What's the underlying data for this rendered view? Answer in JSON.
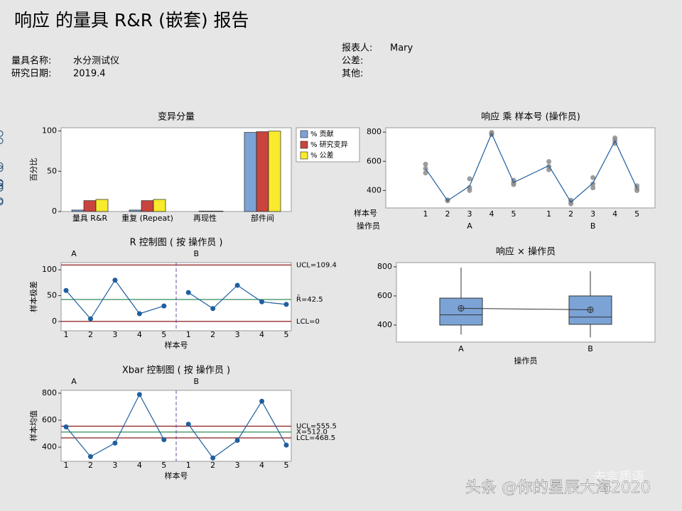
{
  "header": {
    "title": "响应 的量具 R&R (嵌套) 报告",
    "fields": [
      {
        "label": "量具名称:",
        "value": "水分测试仪"
      },
      {
        "label": "研究日期:",
        "value": "2019.4"
      }
    ],
    "fields_right": [
      {
        "label": "报表人:",
        "value": "Mary"
      },
      {
        "label": "公差:"
      },
      {
        "label": "其他:"
      }
    ]
  },
  "watermark": {
    "text": "头条 @你的星辰大海2020",
    "logo": "去言质语"
  },
  "chart_data": [
    {
      "type": "bar",
      "title": "变异分量",
      "y_label": "百分比",
      "categories": [
        "量具 R&R",
        "重复 (Repeat)",
        "再现性",
        "部件间"
      ],
      "series": [
        {
          "name": "% 贡献",
          "color": "#7ba3d6",
          "values": [
            1.8,
            1.8,
            0,
            98.2
          ]
        },
        {
          "name": "% 研究变异",
          "color": "#c9443e",
          "values": [
            13.5,
            13.5,
            0.5,
            99.1
          ]
        },
        {
          "name": "% 公差",
          "color": "#f8ea2c",
          "values": [
            15,
            15,
            0.5,
            99.8
          ]
        }
      ],
      "ylim": [
        0,
        104
      ],
      "yticks": [
        0,
        50,
        100
      ],
      "legend": "right"
    },
    {
      "type": "line",
      "title": "响应 乘 样本号 (操作员)",
      "x_label": "样本号",
      "group_label": "操作员",
      "groups": [
        {
          "name": "A",
          "categories": [
            "1",
            "2",
            "3",
            "4",
            "5"
          ],
          "means": [
            550,
            330,
            430,
            790,
            455
          ],
          "points": [
            [
              580,
              550,
              520
            ],
            [
              335,
              332,
              330
            ],
            [
              480,
              420,
              400
            ],
            [
              798,
              790,
              783
            ],
            [
              470,
              452,
              440
            ]
          ]
        },
        {
          "name": "B",
          "categories": [
            "1",
            "2",
            "3",
            "4",
            "5"
          ],
          "means": [
            570,
            320,
            450,
            740,
            415
          ],
          "points": [
            [
              598,
              565,
              542
            ],
            [
              333,
              322,
              308
            ],
            [
              488,
              445,
              418
            ],
            [
              760,
              742,
              722
            ],
            [
              432,
              413,
              399
            ]
          ]
        }
      ],
      "color": "#1f5f9f",
      "ylim": [
        280,
        830
      ],
      "yticks": [
        400,
        600,
        800
      ]
    },
    {
      "type": "line",
      "title": "R 控制图 ( 按 操作员 )",
      "x_label": "样本号",
      "y_label": "样本极差",
      "groups": [
        {
          "name": "A",
          "categories": [
            "1",
            "2",
            "3",
            "4",
            "5"
          ],
          "values": [
            60,
            5,
            80,
            15,
            30
          ]
        },
        {
          "name": "B",
          "categories": [
            "1",
            "2",
            "3",
            "4",
            "5"
          ],
          "values": [
            56,
            25,
            70,
            38,
            33
          ]
        }
      ],
      "control_lines": [
        {
          "value": 109.4,
          "label": "UCL=109.4",
          "color": "#8b1a1a"
        },
        {
          "value": 42.5,
          "label": "R̄=42.5",
          "color": "#2e8b57"
        },
        {
          "value": 0,
          "label": "LCL=0",
          "color": "#8b1a1a"
        }
      ],
      "color": "#1f5f9f",
      "ylim": [
        -18,
        114
      ],
      "yticks": [
        0,
        50,
        100
      ]
    },
    {
      "type": "line",
      "title": "Xbar 控制图 ( 按 操作员 )",
      "x_label": "样本号",
      "y_label": "样本均值",
      "groups": [
        {
          "name": "A",
          "categories": [
            "1",
            "2",
            "3",
            "4",
            "5"
          ],
          "values": [
            550,
            330,
            430,
            790,
            455
          ]
        },
        {
          "name": "B",
          "categories": [
            "1",
            "2",
            "3",
            "4",
            "5"
          ],
          "values": [
            570,
            320,
            450,
            740,
            415
          ]
        }
      ],
      "control_lines": [
        {
          "value": 555.5,
          "label": "UCL=555.5",
          "color": "#8b1a1a"
        },
        {
          "value": 512.0,
          "label": "X̄=512.0",
          "color": "#2e8b57"
        },
        {
          "value": 468.5,
          "label": "LCL=468.5",
          "color": "#8b1a1a"
        }
      ],
      "color": "#1f5f9f",
      "ylim": [
        295,
        821
      ],
      "yticks": [
        400,
        600,
        800
      ]
    },
    {
      "type": "box",
      "title": "响应 × 操作员",
      "x_label": "操作员",
      "categories": [
        "A",
        "B"
      ],
      "boxes": [
        {
          "min": 335,
          "q1": 400,
          "median": 470,
          "q3": 585,
          "max": 795,
          "mean": 515
        },
        {
          "min": 315,
          "q1": 405,
          "median": 455,
          "q3": 600,
          "max": 770,
          "mean": 505
        }
      ],
      "color": "#7ba3d6",
      "ylim": [
        283,
        829
      ],
      "yticks": [
        400,
        600,
        800
      ]
    }
  ]
}
